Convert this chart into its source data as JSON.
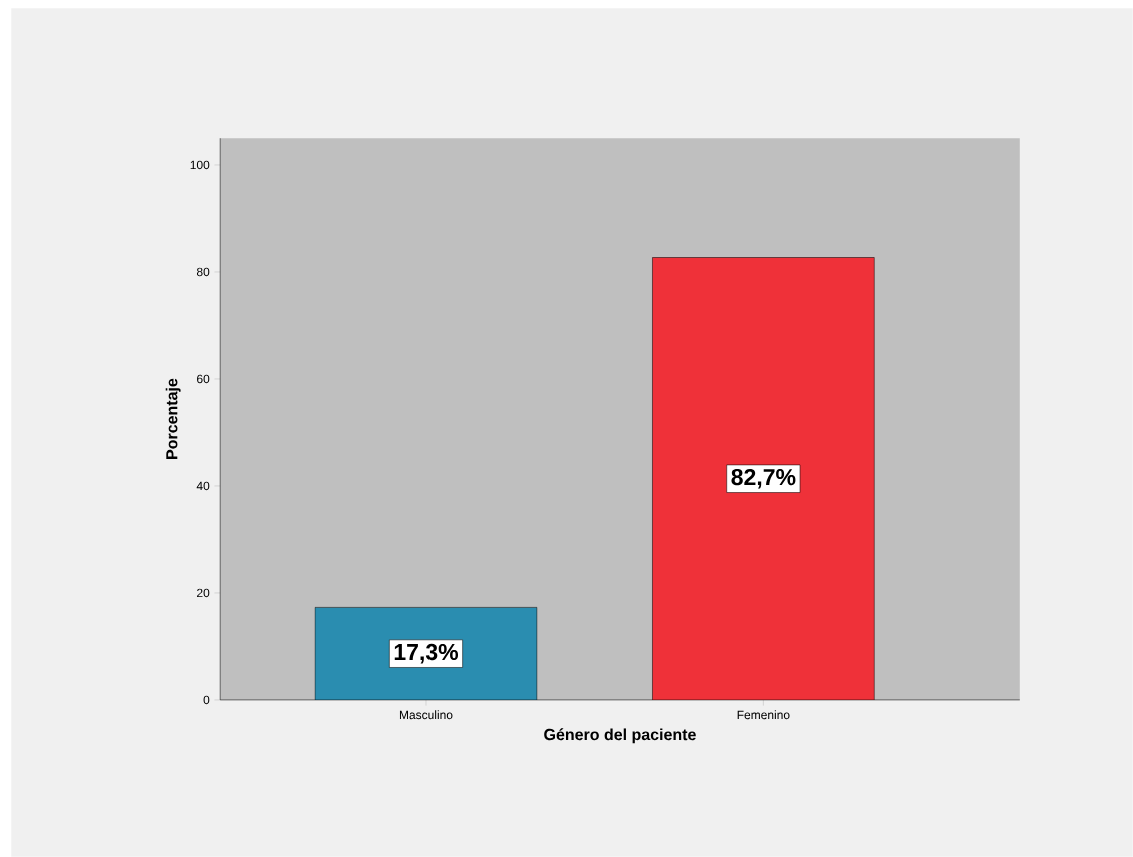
{
  "chart_data": {
    "type": "bar",
    "xlabel": "Género del paciente",
    "ylabel": "Porcentaje",
    "categories": [
      "Masculino",
      "Femenino"
    ],
    "values": [
      17.3,
      82.7
    ],
    "colors": [
      "#2a8db0",
      "#ef3139"
    ],
    "value_labels": [
      "17,3%",
      "82,7%"
    ],
    "ylim": [
      0,
      105
    ],
    "yticks": [
      0,
      20,
      40,
      60,
      80,
      100
    ]
  }
}
